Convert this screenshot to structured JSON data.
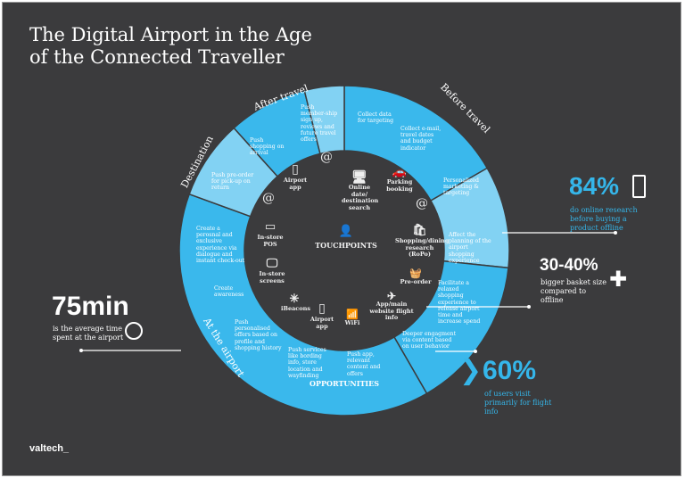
{
  "title": "The Digital Airport in the Age of the Connected Traveller",
  "title_line1": "The Digital Airport in the Age",
  "title_line2": "of the Connected Traveller",
  "phases": {
    "before": "Before travel",
    "after": "After travel",
    "destination": "Destination",
    "airport": "At the airport"
  },
  "center": {
    "touchpoints": "TOUCHPOINTS",
    "opportunities": "OPPORTUNITIES"
  },
  "opportunities": [
    "Collect data for targeting",
    "Collect e-mail, travel dates and budget indicator",
    "Personalized marketing & targeting",
    "Affect the planning of the airport shopping experience",
    "Facilitate a relaxed shopping experience to release airport time and increase spend",
    "Deeper engagment via content based on user behavior",
    "Push app, relevant content and offers",
    "Push services like bording info, store location and wayfinding",
    "Push personalised offers based on profile and shopping history",
    "Create awareness",
    "Create a perosnal and exclusive experience via dialogue and instant check-out",
    "Push pre-order for pick-up on return",
    "Push shopping on arrival",
    "Push member-ship sign up, reviews and future travel offers"
  ],
  "touchpoints": [
    "Online date/ destination search",
    "Parking booking",
    "Shopping/dining research (RoPo)",
    "Pre-order",
    "App/main website flight info",
    "WiFi",
    "Airport app",
    "iBeacons",
    "In-store screens",
    "In-store POS",
    "Airport app"
  ],
  "stats": [
    {
      "value": "84%",
      "text": "do online research before buying a product offline"
    },
    {
      "value": "30-40%",
      "text": "bigger basket size compared to offline"
    },
    {
      "value": "60%",
      "text": "of users visit primarily for flight info"
    },
    {
      "value": "75min",
      "text": "is the average time spent at the airport"
    }
  ],
  "brand": "valtech_",
  "colors": {
    "bg": "#3b3b3d",
    "blue": "#3ab8ec",
    "light": "#82d2f3",
    "accent": "#35b6ea"
  }
}
